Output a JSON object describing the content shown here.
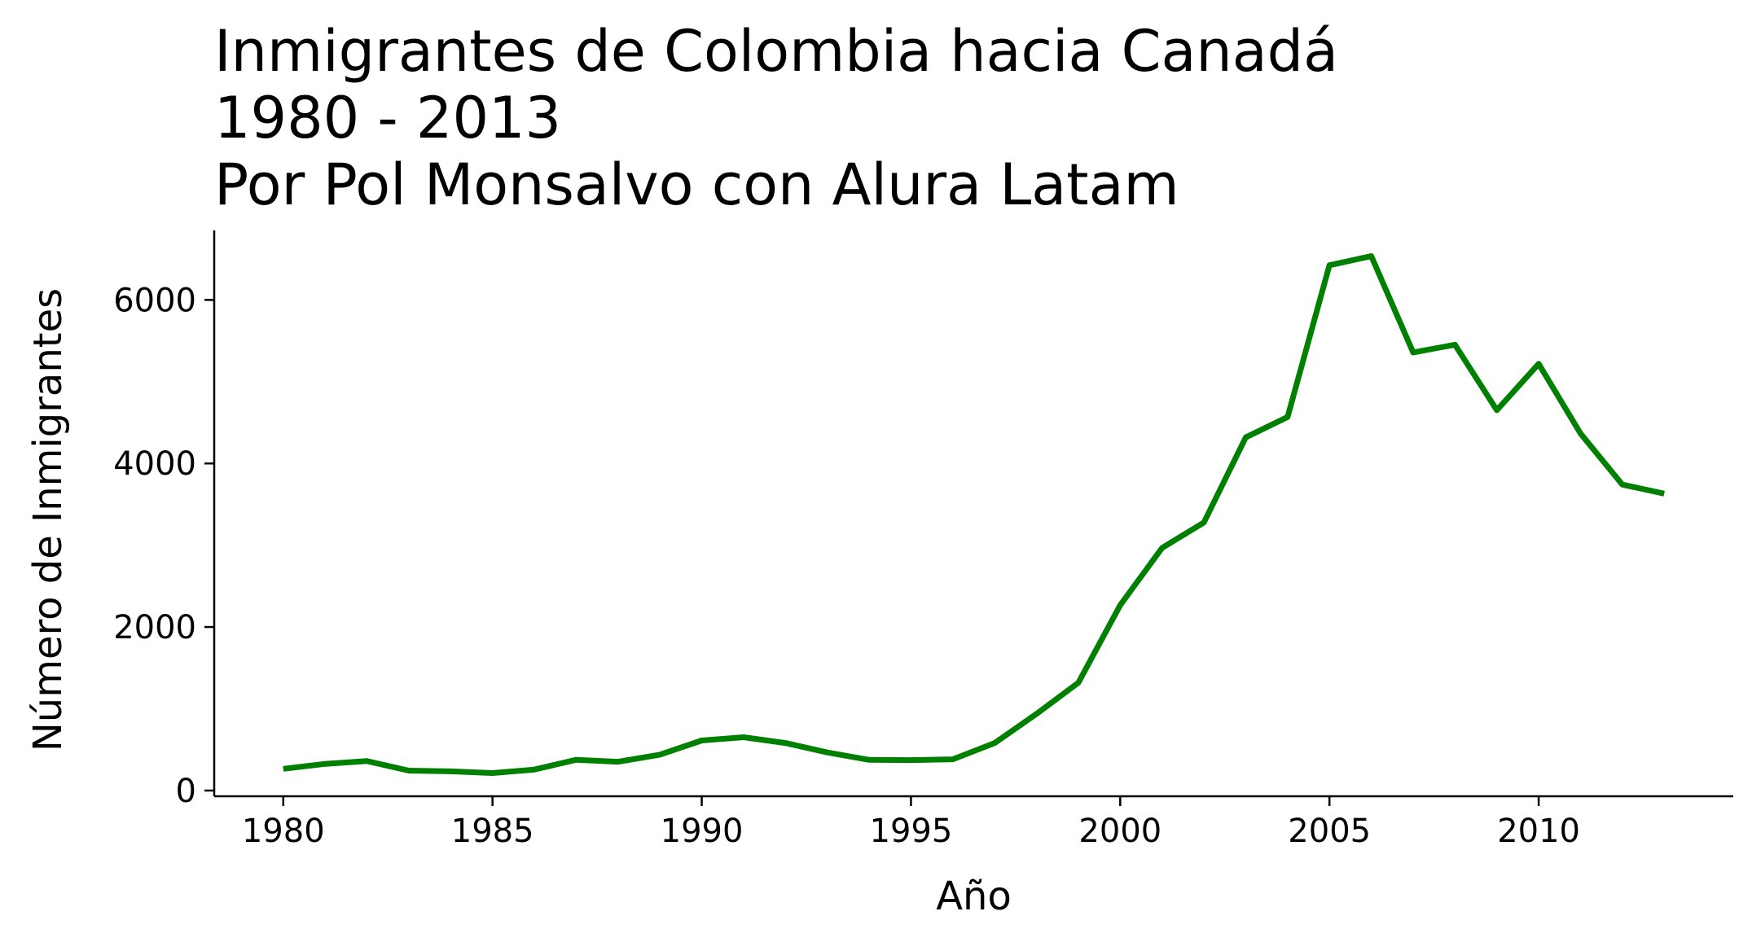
{
  "chart_data": {
    "type": "line",
    "title": "Inmigrantes de Colombia hacia Canadá\n1980 - 2013\nPor Pol Monsalvo con Alura Latam",
    "xlabel": "Año",
    "ylabel": "Número de Inmigrantes",
    "x": [
      1980,
      1981,
      1982,
      1983,
      1984,
      1985,
      1986,
      1987,
      1988,
      1989,
      1990,
      1991,
      1992,
      1993,
      1994,
      1995,
      1996,
      1997,
      1998,
      1999,
      2000,
      2001,
      2002,
      2003,
      2004,
      2005,
      2006,
      2007,
      2008,
      2009,
      2010,
      2011,
      2012,
      2013
    ],
    "series": [
      {
        "values": [
          266,
          326,
          360,
          244,
          235,
          214,
          257,
          376,
          352,
          439,
          612,
          652,
          581,
          466,
          375,
          372,
          382,
          581,
          938,
          1318,
          2267,
          2967,
          3278,
          4319,
          4568,
          6424,
          6535,
          5357,
          5452,
          4652,
          5218,
          4366,
          3741,
          3631
        ],
        "color": "#008000"
      }
    ],
    "xlim": [
      1978.35,
      2014.65
    ],
    "ylim": [
      -70,
      6850
    ],
    "xticks": [
      "1980",
      "1985",
      "1990",
      "1995",
      "2000",
      "2005",
      "2010"
    ],
    "yticks": [
      "0",
      "2000",
      "4000",
      "6000"
    ],
    "grid": false,
    "spines": "left-bottom"
  }
}
